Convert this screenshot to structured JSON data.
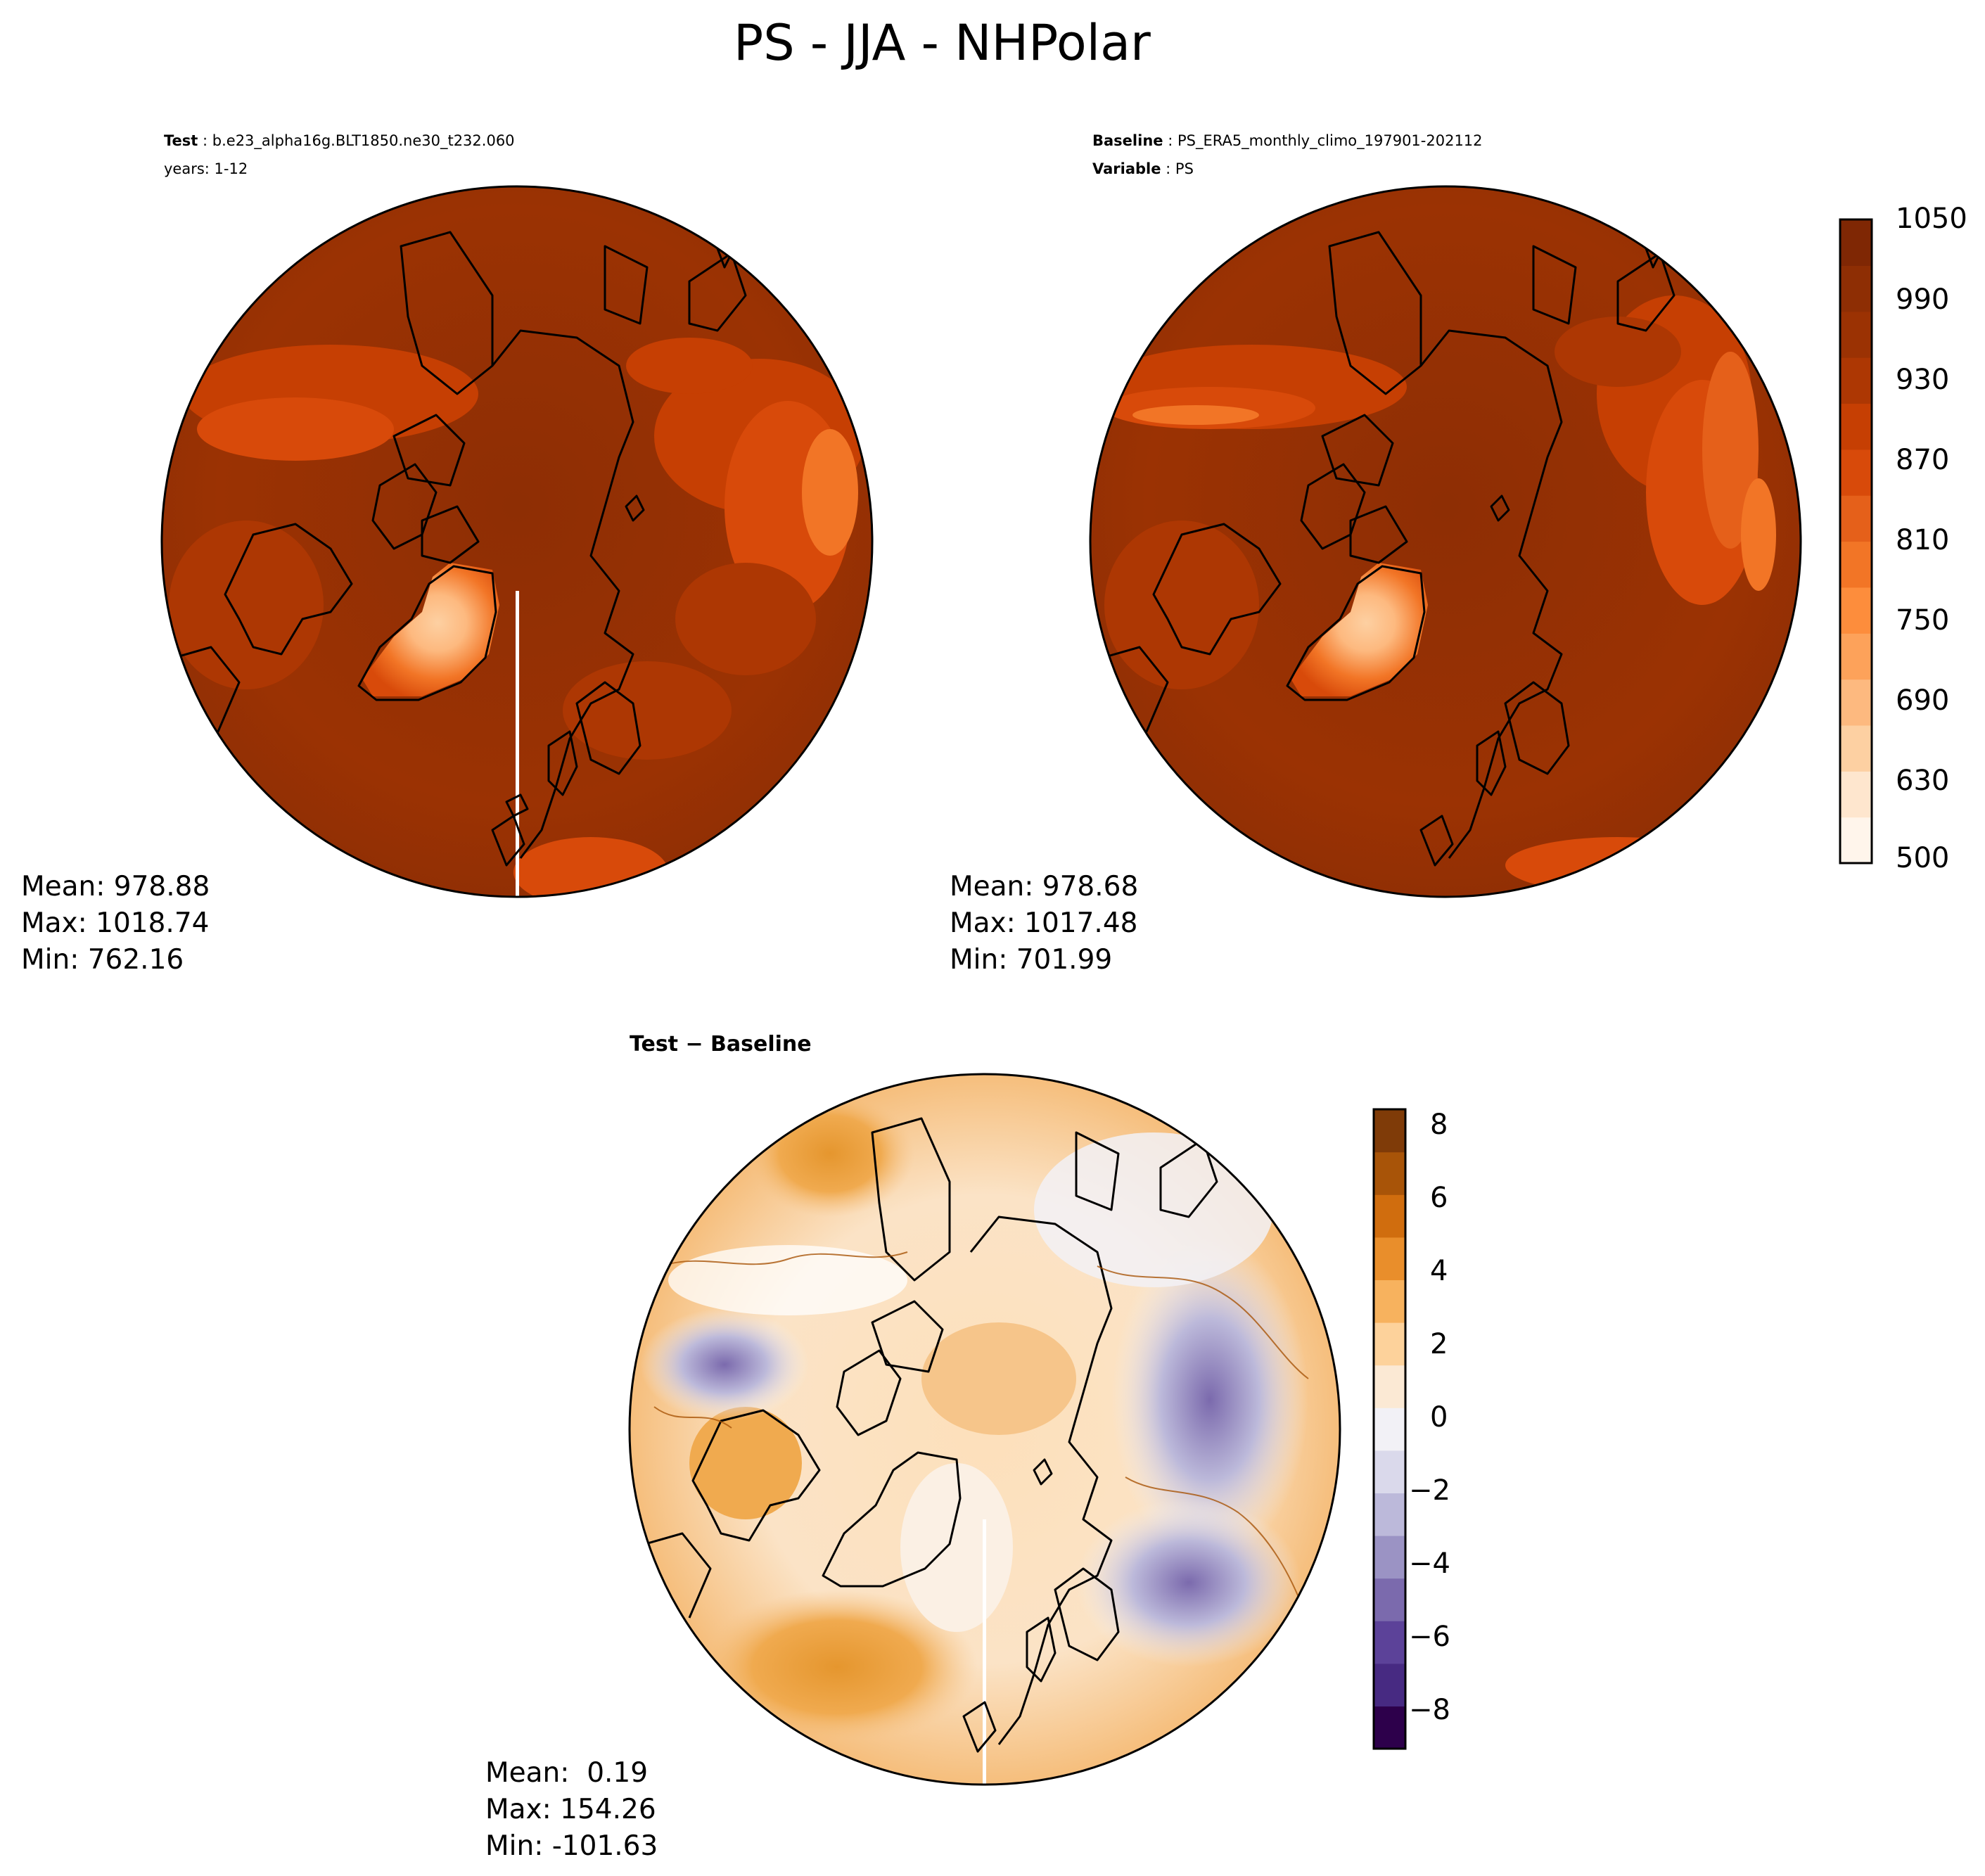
{
  "title": "PS - JJA - NHPolar",
  "panels": {
    "test": {
      "header_label": "Test",
      "header_value": "b.e23_alpha16g.BLT1850.ne30_t232.060",
      "header_line2": "years: 1-12",
      "mean": "Mean: 978.88",
      "max": "Max: 1018.74",
      "min": "Min: 762.16"
    },
    "baseline": {
      "header_label": "Baseline",
      "header_value": "PS_ERA5_monthly_climo_197901-202112",
      "header_label2": "Variable",
      "header_value2": "PS",
      "mean": "Mean: 978.68",
      "max": "Max: 1017.48",
      "min": "Min: 701.99"
    },
    "diff": {
      "header_label": "Test − Baseline",
      "mean": "Mean:  0.19",
      "max": "Max: 154.26",
      "min": "Min: -101.63"
    }
  },
  "colorbar_main": {
    "ticks": [
      "1050",
      "990",
      "930",
      "870",
      "810",
      "750",
      "690",
      "630",
      "500"
    ],
    "colors": [
      "#fff5eb",
      "#fee6ce",
      "#fdd0a2",
      "#fdb97f",
      "#fda25a",
      "#fd8d3c",
      "#f27526",
      "#e5601a",
      "#d84a0a",
      "#c63f03",
      "#ad3703",
      "#9b3203",
      "#8e2e04",
      "#7f2704"
    ]
  },
  "colorbar_diff": {
    "ticks": [
      "8",
      "6",
      "4",
      "2",
      "0",
      "−2",
      "−4",
      "−6",
      "−8"
    ],
    "colors": [
      "#2d004b",
      "#472a82",
      "#5c4299",
      "#7b6aad",
      "#9b93c4",
      "#bcb9da",
      "#dad9eb",
      "#f2f1f6",
      "#fbe9d4",
      "#fdd29b",
      "#f7b25e",
      "#e98e2b",
      "#d06d0e",
      "#a85408",
      "#7f3b08"
    ]
  }
}
